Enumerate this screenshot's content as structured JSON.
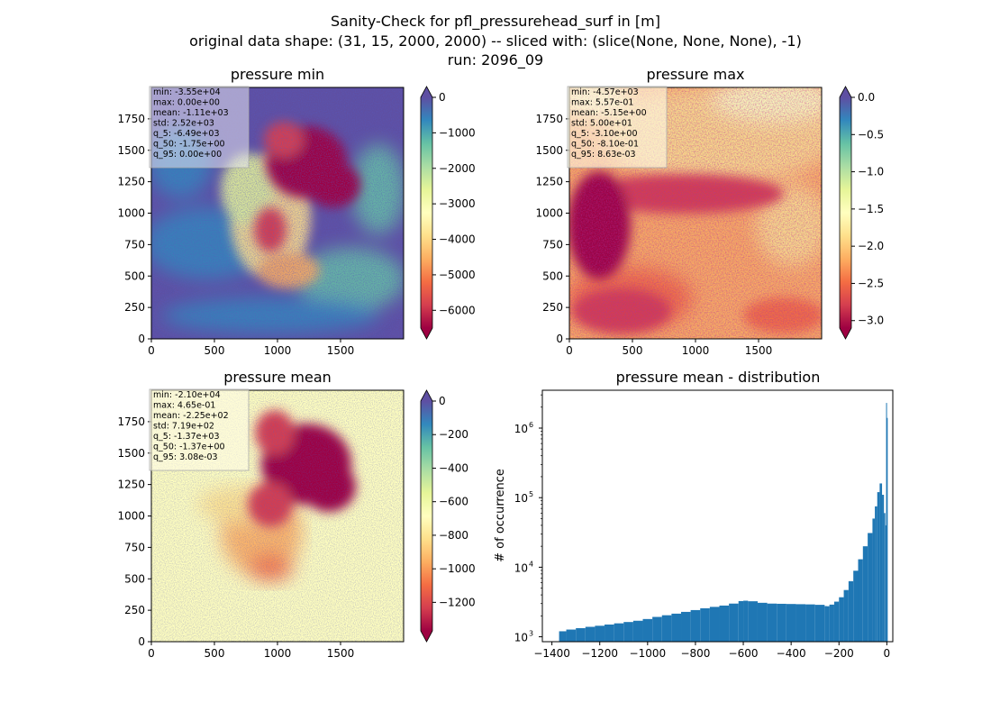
{
  "figure": {
    "title_lines": [
      "Sanity-Check for pfl_pressurehead_surf in [m]",
      "original data shape: (31, 15, 2000, 2000) -- sliced with: (slice(None, None, None), -1)",
      "run: 2096_09"
    ]
  },
  "colors": {
    "spectral": [
      "#9e0142",
      "#d53e4f",
      "#f46d43",
      "#fdae61",
      "#fee08b",
      "#ffffbf",
      "#e6f598",
      "#abdda4",
      "#66c2a5",
      "#3288bd",
      "#5e4fa2"
    ],
    "hist_bar": "#1f77b4"
  },
  "chart_data": [
    {
      "type": "heatmap",
      "title": "pressure min",
      "xlim": [
        0,
        2000
      ],
      "ylim": [
        0,
        2000
      ],
      "xticks": [
        0,
        500,
        1000,
        1500
      ],
      "yticks": [
        0,
        250,
        500,
        750,
        1000,
        1250,
        1500,
        1750
      ],
      "stats": [
        "min: -3.55e+04",
        "max: 0.00e+00",
        "mean: -1.11e+03",
        "std: 2.52e+03",
        "q_5: -6.49e+03",
        "q_50: -1.75e+00",
        "q_95: 0.00e+00"
      ],
      "colorbar": {
        "range": [
          -6500,
          0
        ],
        "ticks": [
          0,
          -1000,
          -2000,
          -3000,
          -4000,
          -5000,
          -6000
        ],
        "tick_labels": [
          "0",
          "−1000",
          "−2000",
          "−3000",
          "−4000",
          "−5000",
          "−6000"
        ]
      }
    },
    {
      "type": "heatmap",
      "title": "pressure max",
      "xlim": [
        0,
        2000
      ],
      "ylim": [
        0,
        2000
      ],
      "xticks": [
        0,
        500,
        1000,
        1500
      ],
      "yticks": [
        0,
        250,
        500,
        750,
        1000,
        1250,
        1500,
        1750
      ],
      "stats": [
        "min: -4.57e+03",
        "max: 5.57e-01",
        "mean: -5.15e+00",
        "std: 5.00e+01",
        "q_5: -3.10e+00",
        "q_50: -8.10e-01",
        "q_95: 8.63e-03"
      ],
      "colorbar": {
        "range": [
          -3.1,
          0
        ],
        "ticks": [
          0,
          -0.5,
          -1,
          -1.5,
          -2,
          -2.5,
          -3
        ],
        "tick_labels": [
          "0.0",
          "−0.5",
          "−1.0",
          "−1.5",
          "−2.0",
          "−2.5",
          "−3.0"
        ]
      }
    },
    {
      "type": "heatmap",
      "title": "pressure mean",
      "xlim": [
        0,
        2000
      ],
      "ylim": [
        0,
        2000
      ],
      "xticks": [
        0,
        500,
        1000,
        1500
      ],
      "yticks": [
        0,
        250,
        500,
        750,
        1000,
        1250,
        1500,
        1750
      ],
      "stats": [
        "min: -2.10e+04",
        "max: 4.65e-01",
        "mean: -2.25e+02",
        "std: 7.19e+02",
        "q_5: -1.37e+03",
        "q_50: -1.37e+00",
        "q_95: 3.08e-03"
      ],
      "colorbar": {
        "range": [
          -1370,
          0
        ],
        "ticks": [
          0,
          -200,
          -400,
          -600,
          -800,
          -1000,
          -1200
        ],
        "tick_labels": [
          "0",
          "−200",
          "−400",
          "−600",
          "−800",
          "−1000",
          "−1200"
        ]
      }
    },
    {
      "type": "bar",
      "title": "pressure mean - distribution",
      "ylabel": "# of occurrence",
      "yscale": "log",
      "xlim": [
        -1440,
        25
      ],
      "ylim": [
        850,
        3500000
      ],
      "xticks": [
        -1400,
        -1200,
        -1000,
        -800,
        -600,
        -400,
        -200,
        0
      ],
      "xtick_labels": [
        "−1400",
        "−1200",
        "−1000",
        "−800",
        "−600",
        "−400",
        "−200",
        "0"
      ],
      "yticks": [
        1000,
        10000,
        100000,
        1000000
      ],
      "ytick_labels": [
        "10",
        "10",
        "10",
        "10"
      ],
      "ytick_exponents": [
        "3",
        "4",
        "5",
        "6"
      ],
      "x": [
        -1370,
        -1340,
        -1300,
        -1260,
        -1220,
        -1180,
        -1140,
        -1100,
        -1060,
        -1020,
        -980,
        -940,
        -900,
        -860,
        -820,
        -780,
        -740,
        -700,
        -660,
        -620,
        -600,
        -580,
        -540,
        -500,
        -460,
        -420,
        -380,
        -340,
        -300,
        -260,
        -250,
        -240,
        -220,
        -200,
        -180,
        -160,
        -140,
        -120,
        -100,
        -80,
        -60,
        -50,
        -40,
        -30,
        -20,
        -12,
        -6,
        -3,
        0
      ],
      "counts": [
        1200,
        1270,
        1330,
        1390,
        1440,
        1500,
        1560,
        1630,
        1700,
        1800,
        1930,
        2040,
        2150,
        2280,
        2420,
        2570,
        2690,
        2810,
        3000,
        3260,
        3300,
        3240,
        3080,
        3000,
        2980,
        2960,
        2940,
        2920,
        2880,
        2760,
        2750,
        2900,
        3200,
        3700,
        4700,
        6300,
        8900,
        13000,
        20000,
        31000,
        50000,
        75000,
        120000,
        160000,
        110000,
        60000,
        40000,
        2300000,
        1400000
      ]
    }
  ]
}
